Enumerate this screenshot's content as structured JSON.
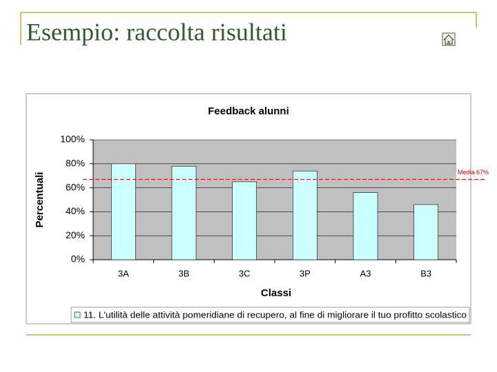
{
  "slide": {
    "title": "Esempio: raccolta risultati"
  },
  "chart_data": {
    "type": "bar",
    "title": "Feedback alunni",
    "x_label": "Classi",
    "y_label": "Percentuali",
    "categories": [
      "3A",
      "3B",
      "3C",
      "3P",
      "A3",
      "B3"
    ],
    "series": [
      {
        "name": "11. L'utilità delle attività pomeridiane di recupero, al fine di migliorare il tuo profitto scolastico",
        "color": "#ccffff",
        "values": [
          80,
          78,
          65,
          74,
          56,
          46
        ]
      }
    ],
    "ylim": [
      0,
      100
    ],
    "yticks": [
      {
        "value": 0,
        "label": "0%"
      },
      {
        "value": 20,
        "label": "20%"
      },
      {
        "value": 40,
        "label": "40%"
      },
      {
        "value": 60,
        "label": "60%"
      },
      {
        "value": 80,
        "label": "80%"
      },
      {
        "value": 100,
        "label": "100%"
      }
    ],
    "grid": true,
    "reference_line": {
      "text": "Media 67%",
      "value": 67,
      "color": "#cc0000"
    }
  }
}
